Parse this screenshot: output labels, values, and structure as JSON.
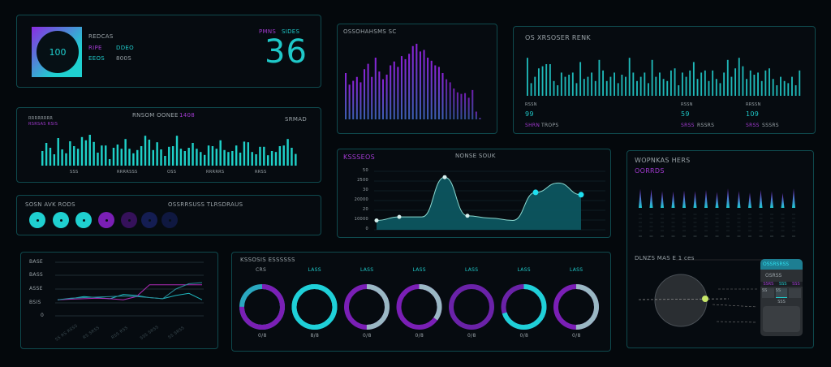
{
  "colors": {
    "accent": "#1fd0d0",
    "secondary": "#8a2be2",
    "border": "#0f4a4e",
    "background": "#04080c"
  },
  "profile": {
    "logo_text": "100",
    "label": "REDCAS",
    "row1_a": "RIPE",
    "row1_b": "DDEO",
    "row2_a": "EEOS",
    "row2_b": "800S",
    "counter_label_a": "PMNS",
    "counter_label_b": "SIDES",
    "counter_value": "36"
  },
  "bars_panel": {
    "title": "RNSOM OONEE",
    "title_badge": "1408",
    "left_label_1": "RRRRRRRR",
    "left_label_2": "RSRSAS RSIS",
    "right_label": "SRMAD",
    "x_labels": [
      "SSS",
      "RRRRSSS",
      "OSS",
      "RRRRRS",
      "RRSS"
    ],
    "values": [
      45,
      70,
      55,
      35,
      85,
      50,
      38,
      75,
      60,
      52,
      88,
      78,
      95,
      73,
      40,
      62,
      62,
      20,
      55,
      65,
      52,
      82,
      52,
      38,
      48,
      60,
      92,
      80,
      48,
      72,
      50,
      30,
      58,
      60,
      92,
      52,
      45,
      55,
      70,
      52,
      42,
      33,
      62,
      60,
      52,
      78,
      48,
      42,
      45,
      62,
      40,
      74,
      72,
      42,
      35,
      58,
      58,
      32,
      45,
      42,
      60,
      62,
      82,
      55,
      36
    ]
  },
  "status_dots": {
    "title": "SOSN AVK RODS",
    "subtitle": "OSSRRSUSS TLRSDRAUS",
    "dots": [
      {
        "color": "#1fd0d0"
      },
      {
        "color": "#1fd0d0"
      },
      {
        "color": "#1fd0d0"
      },
      {
        "color": "#7a1fb5"
      },
      {
        "color": "#35115a"
      },
      {
        "color": "#141d52"
      },
      {
        "color": "#0f1840"
      }
    ]
  },
  "line_chart": {
    "y_labels": [
      "BASE",
      "BASS",
      "ASSE",
      "BSIS",
      "0"
    ],
    "x_labels": [
      "SS RS RSSS",
      "RS SRSS",
      "RSS RSS",
      "SSS SRSS",
      "SS SRSS"
    ],
    "series": [
      {
        "color": "#1fb8c0",
        "values": [
          30,
          32,
          36,
          34,
          32,
          40,
          38,
          34,
          32,
          38,
          42,
          30
        ]
      },
      {
        "color": "#b02ab8",
        "values": [
          30,
          31,
          32,
          33,
          32,
          30,
          36,
          58,
          58,
          58,
          58,
          58
        ]
      },
      {
        "color": "#2a8f9c",
        "values": [
          30,
          33,
          34,
          35,
          36,
          37,
          36,
          34,
          32,
          50,
          60,
          62
        ]
      }
    ]
  },
  "histogram": {
    "title": "OSSOHAHSMS SC",
    "values": [
      60,
      45,
      50,
      55,
      48,
      65,
      72,
      55,
      80,
      62,
      52,
      58,
      70,
      75,
      68,
      82,
      78,
      85,
      95,
      98,
      88,
      90,
      80,
      76,
      70,
      68,
      60,
      52,
      48,
      40,
      35,
      33,
      34,
      28,
      38,
      10,
      2
    ]
  },
  "activity": {
    "title": "OS XRSOSER RENK",
    "values": [
      90,
      30,
      45,
      65,
      70,
      75,
      75,
      35,
      25,
      55,
      45,
      50,
      55,
      30,
      80,
      40,
      45,
      55,
      35,
      85,
      60,
      35,
      45,
      55,
      30,
      50,
      45,
      90,
      55,
      35,
      45,
      55,
      30,
      85,
      45,
      55,
      40,
      35,
      60,
      65,
      25,
      55,
      45,
      60,
      80,
      40,
      55,
      60,
      35,
      60,
      40,
      30,
      55,
      85,
      45,
      65,
      90,
      70,
      40,
      60,
      50,
      55,
      35,
      60,
      65,
      40,
      25,
      45,
      35,
      30,
      45,
      25,
      60
    ],
    "stats": [
      {
        "label": "RSSN",
        "value": "99",
        "tag": "SHRN",
        "note": "TROPS"
      },
      {
        "label": "RSSN",
        "value": "59",
        "tag": "SRSS",
        "note": "RSSRS"
      },
      {
        "label": "RRSSN",
        "value": "109",
        "tag": "SRSS",
        "note": "SSSRS"
      }
    ]
  },
  "area_chart": {
    "title": "KSSSEOS",
    "subtitle": "NONSE SOUK",
    "y_labels": [
      "50",
      "2500",
      "30",
      "20000",
      "20",
      "10000",
      "0"
    ],
    "points": [
      [
        0,
        8
      ],
      [
        1,
        11
      ],
      [
        2,
        11
      ],
      [
        3,
        45
      ],
      [
        4,
        12
      ],
      [
        5,
        10
      ],
      [
        6,
        8
      ],
      [
        7,
        32
      ],
      [
        8,
        40
      ],
      [
        9,
        30
      ]
    ],
    "markers": [
      0,
      1,
      3,
      4,
      7,
      9
    ]
  },
  "spikes_panel": {
    "title": "WOPNKAS HERS",
    "subtitle": "OORRDS",
    "values": [
      90,
      88,
      80,
      78,
      82,
      80,
      85,
      75,
      92,
      80,
      72,
      85,
      80,
      70,
      92
    ],
    "section_title": "DLNZS MAS E 1 ces",
    "card_title": "OSSRSRSS",
    "card_sub": "OSRSS",
    "card_tabs": [
      "SSRS",
      "SSS",
      "SSS"
    ],
    "card_cells": [
      "SS",
      "SS",
      ""
    ],
    "card_footer": "SSS"
  },
  "donuts": {
    "title": "KSSOSIS ESSSSSS",
    "items": [
      {
        "top": "CRS",
        "bottom": "0/8",
        "value": 0.75,
        "main": "#7a1fb5",
        "rest": "#2aa8c0"
      },
      {
        "top": "LASS",
        "bottom": "8/8",
        "value": 1,
        "main": "#1fd0d8",
        "rest": "#1fd0d8"
      },
      {
        "top": "LASS",
        "bottom": "0/8",
        "value": 0.5,
        "main": "#9ab8c4",
        "rest": "#7a1fb5"
      },
      {
        "top": "LASS",
        "bottom": "0/8",
        "value": 0.35,
        "main": "#9ab8c4",
        "rest": "#7a1fb5"
      },
      {
        "top": "LASS",
        "bottom": "0/8",
        "value": 0,
        "main": "#7a1fb5",
        "rest": "#6a22a8"
      },
      {
        "top": "LASS",
        "bottom": "0/8",
        "value": 0.7,
        "main": "#1fd0d8",
        "rest": "#6a22a8"
      },
      {
        "top": "LASS",
        "bottom": "0/8",
        "value": 0.5,
        "main": "#9ab8c4",
        "rest": "#7a1fb5"
      }
    ]
  }
}
